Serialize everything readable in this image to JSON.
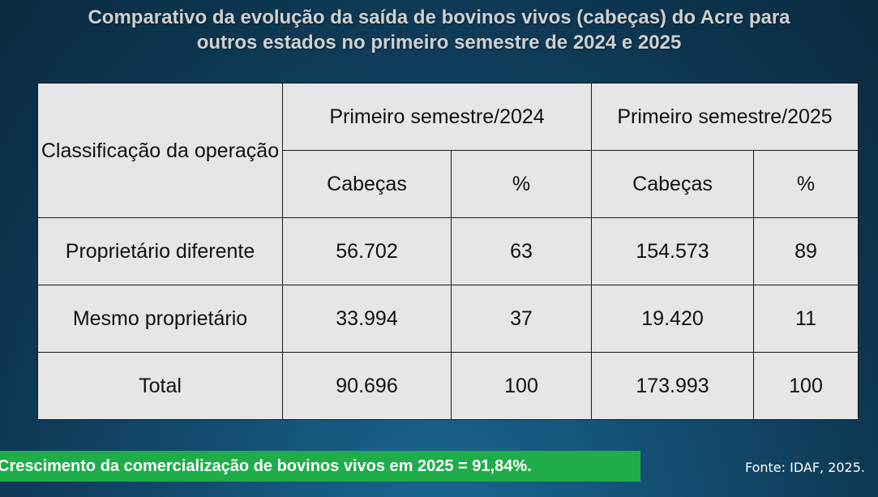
{
  "title": {
    "line1": "Comparativo da evolução da saída de bovinos vivos (cabeças) do Acre para",
    "line2": "outros estados no primeiro semestre de 2024 e 2025"
  },
  "chart_data": {
    "type": "table",
    "row_header": "Classificação da operação",
    "period_headers": [
      "Primeiro semestre/2024",
      "Primeiro semestre/2025"
    ],
    "sub_headers": [
      "Cabeças",
      "%",
      "Cabeças",
      "%"
    ],
    "rows": [
      {
        "label": "Proprietário diferente",
        "values": [
          "56.702",
          "63",
          "154.573",
          "89"
        ]
      },
      {
        "label": "Mesmo proprietário",
        "values": [
          "33.994",
          "37",
          "19.420",
          "11"
        ]
      },
      {
        "label": "Total",
        "values": [
          "90.696",
          "100",
          "173.993",
          "100"
        ]
      }
    ]
  },
  "banner": "Crescimento da comercialização de bovinos vivos em 2025 = 91,84%.",
  "source": "Fonte: IDAF, 2025.",
  "colors": {
    "background": "#0f3d5c",
    "table_fill": "#e6e6e6",
    "banner": "#1fad4a",
    "title_text": "#d0d0d0"
  }
}
